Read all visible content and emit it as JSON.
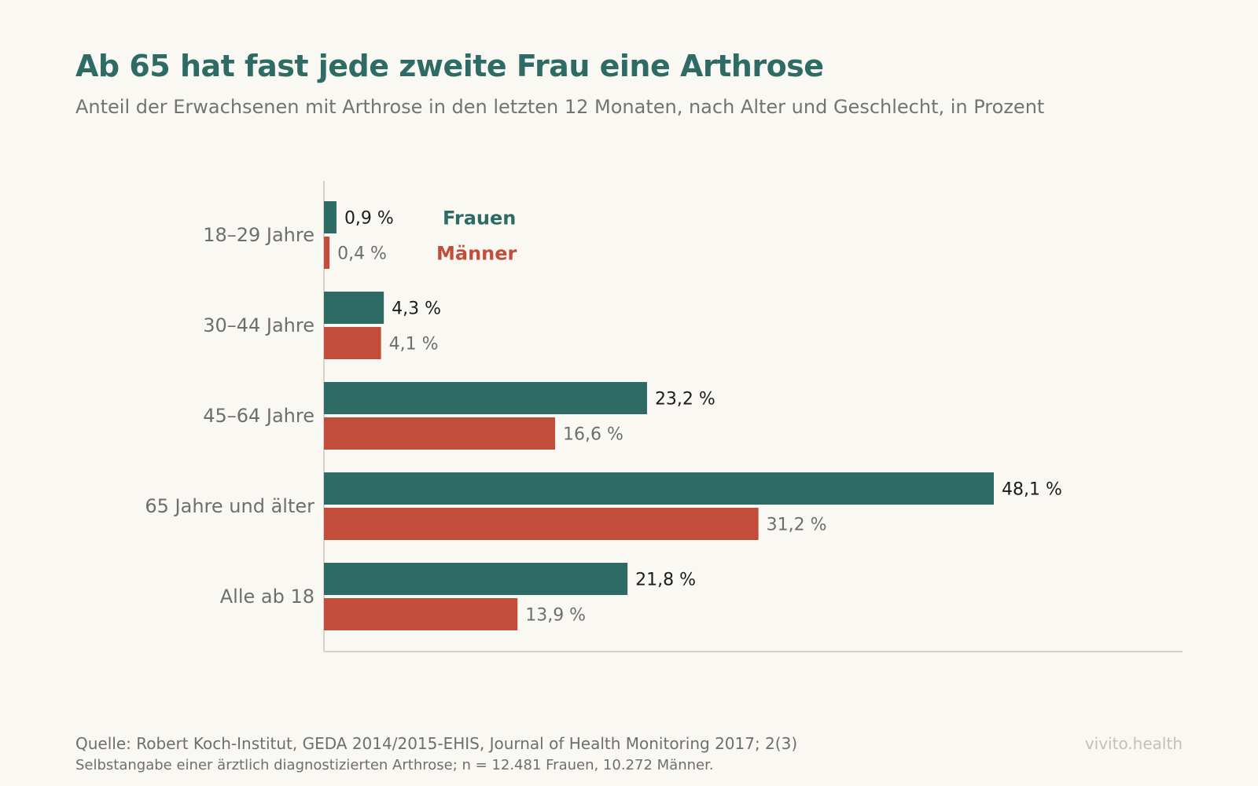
{
  "header": {
    "title": "Ab 65 hat fast jede zweite Frau eine Arthrose",
    "subtitle": "Anteil der Erwachsenen mit Arthrose in den letzten 12 Monaten, nach Alter und Geschlecht, in Prozent"
  },
  "chart_data": {
    "type": "bar",
    "orientation": "horizontal",
    "categories": [
      "18–29 Jahre",
      "30–44 Jahre",
      "45–64 Jahre",
      "65 Jahre und älter",
      "Alle ab 18"
    ],
    "series": [
      {
        "name": "Frauen",
        "color": "#2d6b64",
        "values": [
          0.9,
          4.3,
          23.2,
          48.1,
          21.8
        ],
        "labels": [
          "0,9 %",
          "4,3 %",
          "23,2 %",
          "48,1 %",
          "21,8 %"
        ]
      },
      {
        "name": "Männer",
        "color": "#c24d3a",
        "values": [
          0.4,
          4.1,
          16.6,
          31.2,
          13.9
        ],
        "labels": [
          "0,4 %",
          "4,1 %",
          "16,6 %",
          "31,2 %",
          "13,9 %"
        ]
      }
    ],
    "xlim": [
      0,
      60
    ],
    "grid": false,
    "legend": "inline next to first category"
  },
  "footer": {
    "source": "Quelle: Robert Koch-Institut, GEDA 2014/2015-EHIS, Journal of Health Monitoring 2017; 2(3)",
    "note": "Selbstangabe einer ärztlich diagnostizierten Arthrose; n = 12.481 Frauen, 10.272 Männer.",
    "brand": "vivito.health"
  }
}
